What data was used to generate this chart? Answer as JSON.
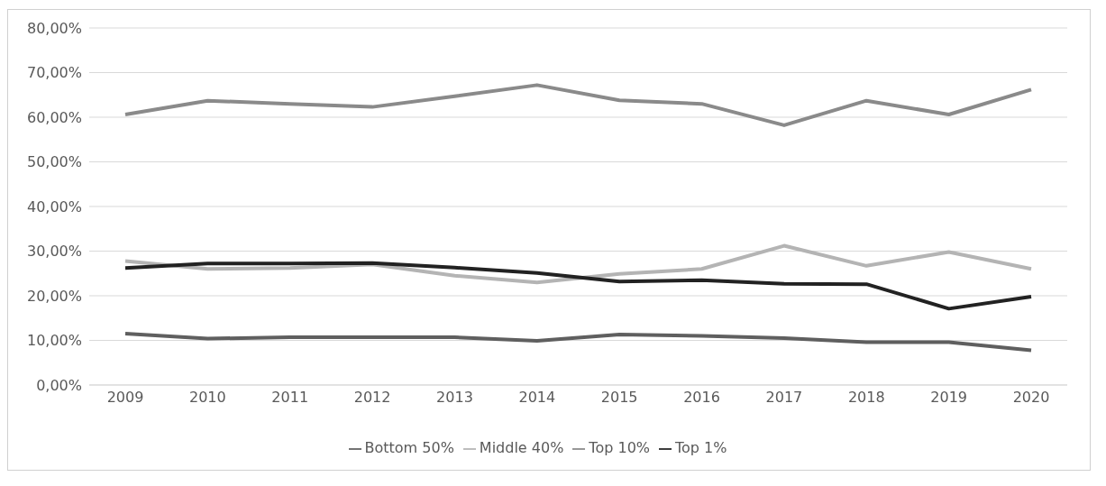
{
  "chart_data": {
    "type": "line",
    "categories": [
      "2009",
      "2010",
      "2011",
      "2012",
      "2013",
      "2014",
      "2015",
      "2016",
      "2017",
      "2018",
      "2019",
      "2020"
    ],
    "series": [
      {
        "name": "Bottom 50%",
        "color": "#5f5f5f",
        "values": [
          11.5,
          10.4,
          10.7,
          10.7,
          10.7,
          9.9,
          11.3,
          11.0,
          10.5,
          9.6,
          9.6,
          7.8
        ]
      },
      {
        "name": "Middle 40%",
        "color": "#b4b4b4",
        "values": [
          27.8,
          26.0,
          26.2,
          27.0,
          24.5,
          23.0,
          24.9,
          26.0,
          31.2,
          26.7,
          29.8,
          26.0
        ]
      },
      {
        "name": "Top 10%",
        "color": "#8a8a8a",
        "values": [
          60.6,
          63.7,
          63.0,
          62.3,
          64.7,
          67.2,
          63.8,
          63.0,
          58.2,
          63.7,
          60.6,
          66.2
        ]
      },
      {
        "name": "Top 1%",
        "color": "#222222",
        "values": [
          26.2,
          27.2,
          27.2,
          27.3,
          26.3,
          25.1,
          23.2,
          23.5,
          22.7,
          22.6,
          17.1,
          19.8
        ]
      }
    ],
    "ylim": [
      0,
      80
    ],
    "yticks": [
      {
        "value": 0,
        "label": "0,00%"
      },
      {
        "value": 10,
        "label": "10,00%"
      },
      {
        "value": 20,
        "label": "20,00%"
      },
      {
        "value": 30,
        "label": "30,00%"
      },
      {
        "value": 40,
        "label": "40,00%"
      },
      {
        "value": 50,
        "label": "50,00%"
      },
      {
        "value": 60,
        "label": "60,00%"
      },
      {
        "value": 70,
        "label": "70,00%"
      },
      {
        "value": 80,
        "label": "80,00%"
      }
    ],
    "grid": "y",
    "legend": "bottom",
    "marker": "none",
    "line_style": "solid"
  }
}
